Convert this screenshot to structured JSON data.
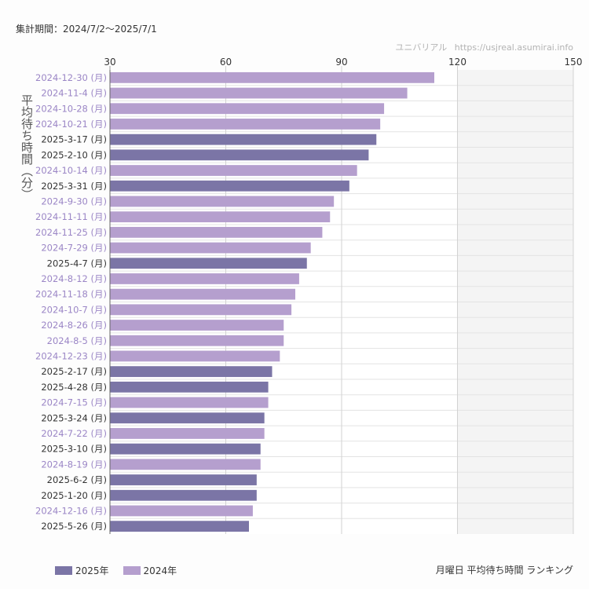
{
  "header": {
    "period": "集計期間：2024/7/2〜2025/7/1",
    "credit_name": "ユニバリアル",
    "credit_url": "https://usjreal.asumirai.info"
  },
  "footer": {
    "caption": "月曜日 平均待ち時間 ランキング"
  },
  "colors": {
    "y2025": "#7b75a6",
    "y2024": "#b59fce",
    "label2025": "#333333",
    "label2024": "#9b86c6",
    "shade": "#f4f4f4",
    "grid": "#e3e3e3"
  },
  "chart_data": {
    "type": "bar",
    "orientation": "horizontal",
    "title": "月曜日 平均待ち時間 ランキング",
    "ylabel": "平均待ち時間（分）",
    "xlim": [
      30,
      150
    ],
    "xticks": [
      "30",
      "60",
      "90",
      "120",
      "150"
    ],
    "shaded_range": [
      120,
      150
    ],
    "legend": [
      {
        "name": "2025年",
        "key": "y2025"
      },
      {
        "name": "2024年",
        "key": "y2024"
      }
    ],
    "bars": [
      {
        "label": "2024-12-30 (月)",
        "value": 114,
        "year": "y2024"
      },
      {
        "label": "2024-11-4 (月)",
        "value": 107,
        "year": "y2024"
      },
      {
        "label": "2024-10-28 (月)",
        "value": 101,
        "year": "y2024"
      },
      {
        "label": "2024-10-21 (月)",
        "value": 100,
        "year": "y2024"
      },
      {
        "label": "2025-3-17 (月)",
        "value": 99,
        "year": "y2025"
      },
      {
        "label": "2025-2-10 (月)",
        "value": 97,
        "year": "y2025"
      },
      {
        "label": "2024-10-14 (月)",
        "value": 94,
        "year": "y2024"
      },
      {
        "label": "2025-3-31 (月)",
        "value": 92,
        "year": "y2025"
      },
      {
        "label": "2024-9-30 (月)",
        "value": 88,
        "year": "y2024"
      },
      {
        "label": "2024-11-11 (月)",
        "value": 87,
        "year": "y2024"
      },
      {
        "label": "2024-11-25 (月)",
        "value": 85,
        "year": "y2024"
      },
      {
        "label": "2024-7-29 (月)",
        "value": 82,
        "year": "y2024"
      },
      {
        "label": "2025-4-7 (月)",
        "value": 81,
        "year": "y2025"
      },
      {
        "label": "2024-8-12 (月)",
        "value": 79,
        "year": "y2024"
      },
      {
        "label": "2024-11-18 (月)",
        "value": 78,
        "year": "y2024"
      },
      {
        "label": "2024-10-7 (月)",
        "value": 77,
        "year": "y2024"
      },
      {
        "label": "2024-8-26 (月)",
        "value": 75,
        "year": "y2024"
      },
      {
        "label": "2024-8-5 (月)",
        "value": 75,
        "year": "y2024"
      },
      {
        "label": "2024-12-23 (月)",
        "value": 74,
        "year": "y2024"
      },
      {
        "label": "2025-2-17 (月)",
        "value": 72,
        "year": "y2025"
      },
      {
        "label": "2025-4-28 (月)",
        "value": 71,
        "year": "y2025"
      },
      {
        "label": "2024-7-15 (月)",
        "value": 71,
        "year": "y2024"
      },
      {
        "label": "2025-3-24 (月)",
        "value": 70,
        "year": "y2025"
      },
      {
        "label": "2024-7-22 (月)",
        "value": 70,
        "year": "y2024"
      },
      {
        "label": "2025-3-10 (月)",
        "value": 69,
        "year": "y2025"
      },
      {
        "label": "2024-8-19 (月)",
        "value": 69,
        "year": "y2024"
      },
      {
        "label": "2025-6-2 (月)",
        "value": 68,
        "year": "y2025"
      },
      {
        "label": "2025-1-20 (月)",
        "value": 68,
        "year": "y2025"
      },
      {
        "label": "2024-12-16 (月)",
        "value": 67,
        "year": "y2024"
      },
      {
        "label": "2025-5-26 (月)",
        "value": 66,
        "year": "y2025"
      }
    ]
  }
}
